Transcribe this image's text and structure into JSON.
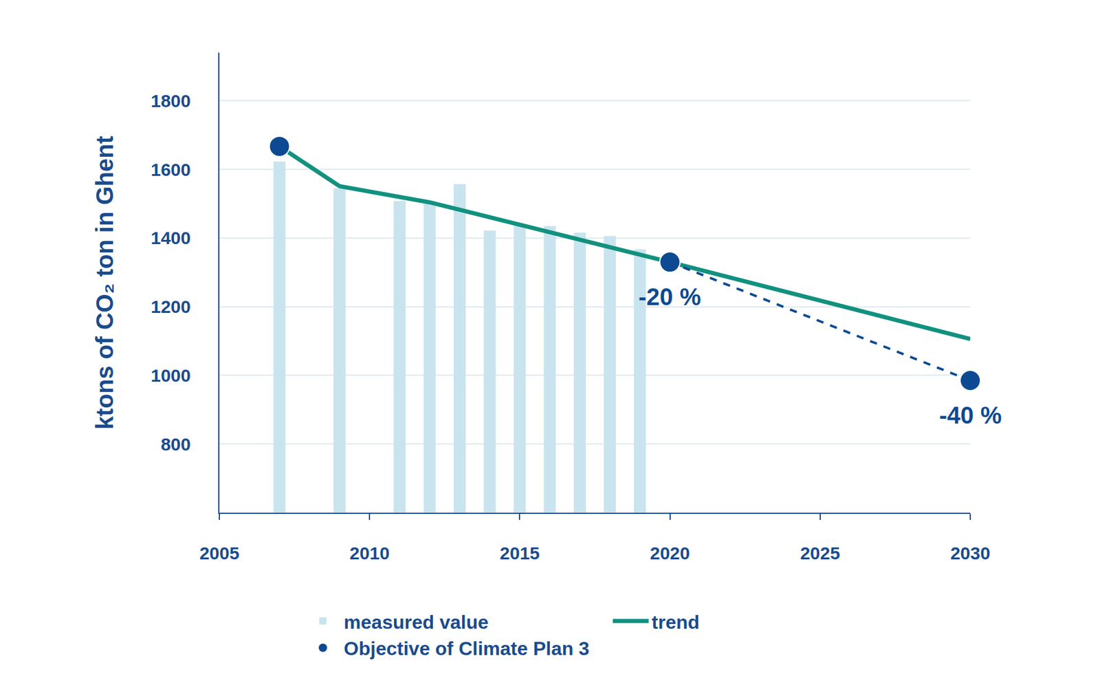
{
  "chart_data": {
    "type": "bar",
    "y_label": "ktons of CO₂ ton in Ghent",
    "xlim": [
      2005,
      2030
    ],
    "xticks": [
      2005,
      2010,
      2015,
      2020,
      2025,
      2030
    ],
    "ylim": [
      600,
      1940
    ],
    "yticks": [
      800,
      1000,
      1200,
      1400,
      1600,
      1800
    ],
    "grid": true,
    "legend": "bottom",
    "series": [
      {
        "name": "measured value",
        "type": "bar",
        "color": "#c9e4ef",
        "x": [
          2007,
          2009,
          2011,
          2012,
          2013,
          2014,
          2015,
          2016,
          2017,
          2018,
          2019
        ],
        "values": [
          1623,
          1545,
          1508,
          1504,
          1557,
          1422,
          1439,
          1435,
          1416,
          1406,
          1367
        ]
      },
      {
        "name": "trend",
        "type": "line",
        "color": "#12917f",
        "x": [
          2007,
          2009,
          2012,
          2020,
          2030
        ],
        "values": [
          1667,
          1551,
          1504,
          1330,
          1106
        ]
      },
      {
        "name": "Objective of Climate Plan 3",
        "type": "scatter",
        "marker": "circle",
        "line_style": "dashed",
        "color": "#0d4a93",
        "x": [
          2007,
          2020,
          2030
        ],
        "values": [
          1667,
          1330,
          985
        ],
        "labels": [
          null,
          "-20 %",
          "-40 %"
        ]
      }
    ]
  }
}
